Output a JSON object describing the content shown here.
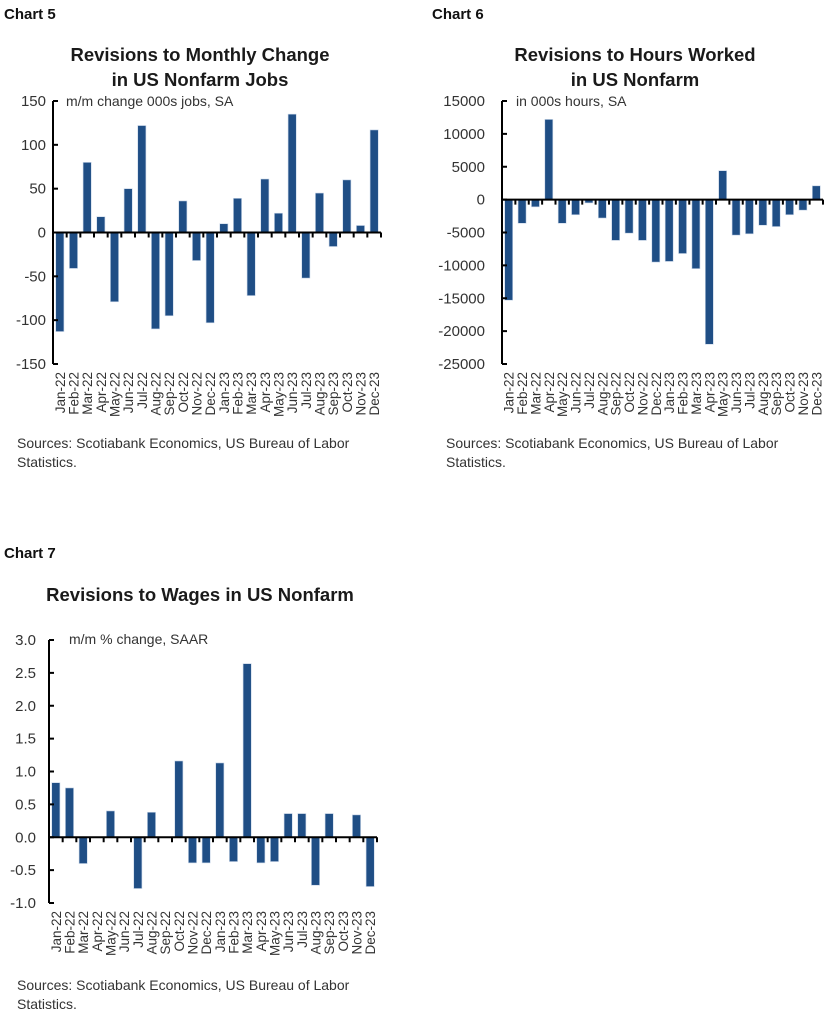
{
  "charts": [
    {
      "label": "Chart 5",
      "title_line1": "Revisions to Monthly Change",
      "title_line2": "in US Nonfarm Jobs",
      "unit": "m/m change 000s jobs, SA",
      "source": "Sources: Scotiabank Economics, US Bureau of Labor Statistics."
    },
    {
      "label": "Chart 6",
      "title_line1": "Revisions to Hours Worked",
      "title_line2": "in US Nonfarm",
      "unit": "in 000s hours, SA",
      "source": "Sources: Scotiabank Economics, US Bureau of Labor Statistics."
    },
    {
      "label": "Chart 7",
      "title_line1": "Revisions to Wages in US Nonfarm",
      "title_line2": "",
      "unit": "m/m % change, SAAR",
      "source": "Sources: Scotiabank Economics, US Bureau of Labor Statistics."
    }
  ],
  "colors": {
    "bar": "#1f4e85",
    "axis": "#000000"
  },
  "chart_data": [
    {
      "type": "bar",
      "title": "Revisions to Monthly Change in US Nonfarm Jobs",
      "subtitle": "m/m change 000s jobs, SA",
      "xlabel": "",
      "ylabel": "m/m change 000s jobs, SA",
      "categories": [
        "Jan-22",
        "Feb-22",
        "Mar-22",
        "Apr-22",
        "May-22",
        "Jun-22",
        "Jul-22",
        "Aug-22",
        "Sep-22",
        "Oct-22",
        "Nov-22",
        "Dec-22",
        "Jan-23",
        "Feb-23",
        "Mar-23",
        "Apr-23",
        "May-23",
        "Jun-23",
        "Jul-23",
        "Aug-23",
        "Sep-23",
        "Oct-23",
        "Nov-23",
        "Dec-23"
      ],
      "values": [
        -113,
        -41,
        80,
        18,
        -79,
        50,
        122,
        -110,
        -95,
        36,
        -32,
        -103,
        10,
        39,
        -72,
        61,
        22,
        135,
        -52,
        45,
        -16,
        60,
        8,
        117
      ],
      "ylim": [
        -150,
        150
      ],
      "yticks": [
        150,
        100,
        50,
        0,
        -50,
        -100,
        -150
      ],
      "ytick_labels": [
        "150",
        "100",
        "50",
        "0",
        "-50",
        "-100",
        "-150"
      ],
      "grid": false,
      "legend": null
    },
    {
      "type": "bar",
      "title": "Revisions to Hours Worked in US Nonfarm",
      "subtitle": "in 000s hours, SA",
      "xlabel": "",
      "ylabel": "in 000s hours, SA",
      "categories": [
        "Jan-22",
        "Feb-22",
        "Mar-22",
        "Apr-22",
        "May-22",
        "Jun-22",
        "Jul-22",
        "Aug-22",
        "Sep-22",
        "Oct-22",
        "Nov-22",
        "Dec-22",
        "Jan-23",
        "Feb-23",
        "Mar-23",
        "Apr-23",
        "May-23",
        "Jun-23",
        "Jul-23",
        "Aug-23",
        "Sep-23",
        "Oct-23",
        "Nov-23",
        "Dec-23"
      ],
      "values": [
        -15300,
        -3600,
        -1100,
        12200,
        -3600,
        -2300,
        -500,
        -2800,
        -6200,
        -5100,
        -6200,
        -9500,
        -9400,
        -8200,
        -10500,
        -22000,
        4400,
        -5400,
        -5200,
        -3900,
        -4100,
        -2300,
        -1600,
        2100
      ],
      "ylim": [
        -25000,
        15000
      ],
      "yticks": [
        15000,
        10000,
        5000,
        0,
        -5000,
        -10000,
        -15000,
        -20000,
        -25000
      ],
      "ytick_labels": [
        "15000",
        "10000",
        "5000",
        "0",
        "-5000",
        "-10000",
        "-15000",
        "-20000",
        "-25000"
      ],
      "grid": false,
      "legend": null
    },
    {
      "type": "bar",
      "title": "Revisions to Wages in US Nonfarm",
      "subtitle": "m/m % change, SAAR",
      "xlabel": "",
      "ylabel": "m/m % change, SAAR",
      "categories": [
        "Jan-22",
        "Feb-22",
        "Mar-22",
        "Apr-22",
        "May-22",
        "Jun-22",
        "Jul-22",
        "Aug-22",
        "Sep-22",
        "Oct-22",
        "Nov-22",
        "Dec-22",
        "Jan-23",
        "Feb-23",
        "Mar-23",
        "Apr-23",
        "May-23",
        "Jun-23",
        "Jul-23",
        "Aug-23",
        "Sep-23",
        "Oct-23",
        "Nov-23",
        "Dec-23"
      ],
      "values": [
        0.83,
        0.75,
        -0.4,
        0,
        0.4,
        0,
        -0.78,
        0.38,
        0,
        1.16,
        -0.39,
        -0.39,
        1.13,
        -0.37,
        2.64,
        -0.39,
        -0.37,
        0.36,
        0.36,
        -0.73,
        0.36,
        0,
        0.34,
        -0.75
      ],
      "ylim": [
        -1.0,
        3.0
      ],
      "yticks": [
        3.0,
        2.5,
        2.0,
        1.5,
        1.0,
        0.5,
        0.0,
        -0.5,
        -1.0
      ],
      "ytick_labels": [
        "3.0",
        "2.5",
        "2.0",
        "1.5",
        "1.0",
        "0.5",
        "0.0",
        "-0.5",
        "-1.0"
      ],
      "grid": false,
      "legend": null
    }
  ]
}
